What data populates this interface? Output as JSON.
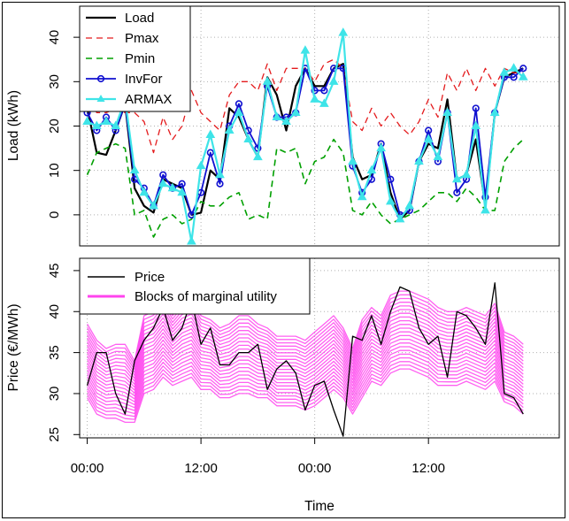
{
  "chart_data": [
    {
      "type": "line",
      "ylabel": "Load (kWh)",
      "ylim": [
        -7,
        47
      ],
      "yticks": [
        0,
        10,
        20,
        30,
        40
      ],
      "xlim": [
        -0.8,
        49.8
      ],
      "grid": true,
      "legend_position": "top-left",
      "series": [
        {
          "name": "Load",
          "color": "#000000",
          "style": "solid",
          "marker": "none",
          "values": [
            24,
            14,
            13.5,
            19,
            25,
            6,
            2,
            0.5,
            8,
            7,
            6,
            0,
            0.5,
            10,
            8,
            24,
            22,
            17,
            13,
            31,
            27,
            19,
            29,
            33,
            29,
            29,
            33,
            34,
            13,
            8,
            9,
            16,
            5,
            -1,
            1,
            12,
            16,
            15,
            26,
            8,
            9,
            17,
            2,
            23,
            31,
            32,
            33
          ]
        },
        {
          "name": "Pmax",
          "color": "#e41a1c",
          "style": "dashed",
          "marker": "none",
          "values": [
            28,
            23,
            23,
            24,
            23,
            23,
            21,
            14,
            22,
            17,
            20,
            28,
            23,
            21,
            19,
            27,
            30,
            30,
            28,
            34,
            28,
            33,
            33,
            33,
            30,
            34,
            35,
            33,
            21,
            19,
            24,
            20,
            23,
            20,
            18,
            21,
            26,
            22,
            32,
            28,
            33,
            28,
            33,
            29,
            33,
            32,
            32
          ]
        },
        {
          "name": "Pmin",
          "color": "#00a000",
          "style": "dashed",
          "marker": "none",
          "values": [
            9,
            14,
            15,
            16,
            15,
            0,
            1,
            -5,
            -1,
            0,
            -2,
            -1,
            3,
            2,
            2,
            4,
            5,
            -1,
            0,
            -1,
            15,
            14,
            15,
            7,
            12,
            13,
            17,
            14,
            1,
            0,
            3,
            0,
            -2,
            -1,
            0,
            1,
            3,
            5,
            5,
            3,
            6,
            4,
            1,
            1,
            12,
            15,
            17
          ]
        },
        {
          "name": "InvFor",
          "color": "#1010d0",
          "style": "solid",
          "marker": "circle",
          "values": [
            23,
            19,
            22,
            19,
            25,
            8,
            6,
            2,
            9,
            6,
            7,
            0,
            5,
            14,
            7,
            20,
            25,
            19,
            15,
            29,
            22,
            22,
            23,
            33,
            28,
            28,
            33,
            33,
            11,
            5,
            8,
            16,
            8,
            0,
            1,
            12,
            19,
            12,
            23,
            5,
            8,
            24,
            4,
            23,
            31,
            31,
            33
          ]
        },
        {
          "name": "ARMAX",
          "color": "#3ee4e8",
          "style": "solid",
          "marker": "triangle",
          "values": [
            21,
            20,
            21,
            20,
            26,
            10,
            5,
            2,
            7,
            6,
            5,
            -6,
            11,
            18,
            9,
            19,
            23,
            17,
            13,
            30,
            22,
            21,
            23,
            37,
            26,
            25,
            30,
            41,
            12,
            4,
            10,
            15,
            3,
            -1,
            2,
            12,
            17,
            13,
            23,
            8,
            9,
            20,
            1,
            23,
            32,
            33,
            31
          ]
        }
      ]
    },
    {
      "type": "line",
      "xlabel": "Time",
      "ylabel": "Price (€/MWh)",
      "ylim": [
        24.6,
        46.5
      ],
      "yticks": [
        25,
        30,
        35,
        40,
        45
      ],
      "xlim": [
        -0.8,
        49.8
      ],
      "xticks": [
        0,
        12,
        24,
        36
      ],
      "xtick_labels": [
        "00:00",
        "12:00",
        "00:00",
        "12:00"
      ],
      "grid": true,
      "legend_position": "top-left",
      "series": [
        {
          "name": "Price",
          "color": "#000000",
          "style": "solid",
          "values": [
            31,
            35,
            35,
            30,
            27.5,
            34,
            36.5,
            38,
            40.5,
            36.5,
            38,
            41.5,
            36,
            38,
            33.5,
            33.5,
            35,
            35,
            36,
            30.5,
            33,
            34,
            32.5,
            28,
            31,
            31.5,
            28,
            24.8,
            37,
            36.5,
            39.5,
            36,
            40,
            43,
            42.5,
            38,
            36,
            37,
            32,
            40,
            39.5,
            38,
            36,
            43.5,
            30,
            29.5,
            27.5
          ]
        },
        {
          "name": "Blocks of marginal utility",
          "color": "#ff44ee",
          "style": "band",
          "upper": [
            38.5,
            36.5,
            35.5,
            36,
            36,
            34,
            39.5,
            40,
            41.5,
            39.5,
            41,
            41.5,
            39.5,
            39,
            38,
            38.5,
            39.5,
            39.5,
            38.5,
            38,
            37,
            37,
            37,
            36.5,
            37.5,
            38.5,
            39.5,
            38,
            35.5,
            39,
            40.5,
            39.5,
            42,
            42.5,
            42.5,
            42,
            41.5,
            40.5,
            40,
            40,
            40.5,
            40,
            39.5,
            41,
            37.5,
            37,
            36
          ],
          "lower": [
            29.5,
            27.5,
            27,
            27,
            26.5,
            26.5,
            30,
            30.5,
            32,
            31,
            31.5,
            32,
            30.5,
            30.5,
            29.5,
            29.5,
            30,
            30,
            29.5,
            29.5,
            28.5,
            28.5,
            28.5,
            28,
            28.5,
            29.5,
            30.5,
            29.5,
            27.5,
            29.5,
            31.5,
            31,
            32.5,
            33,
            33,
            32.5,
            32,
            31,
            31,
            31,
            31.5,
            31,
            30.5,
            31.5,
            29,
            28.5,
            27.5
          ]
        }
      ]
    }
  ]
}
